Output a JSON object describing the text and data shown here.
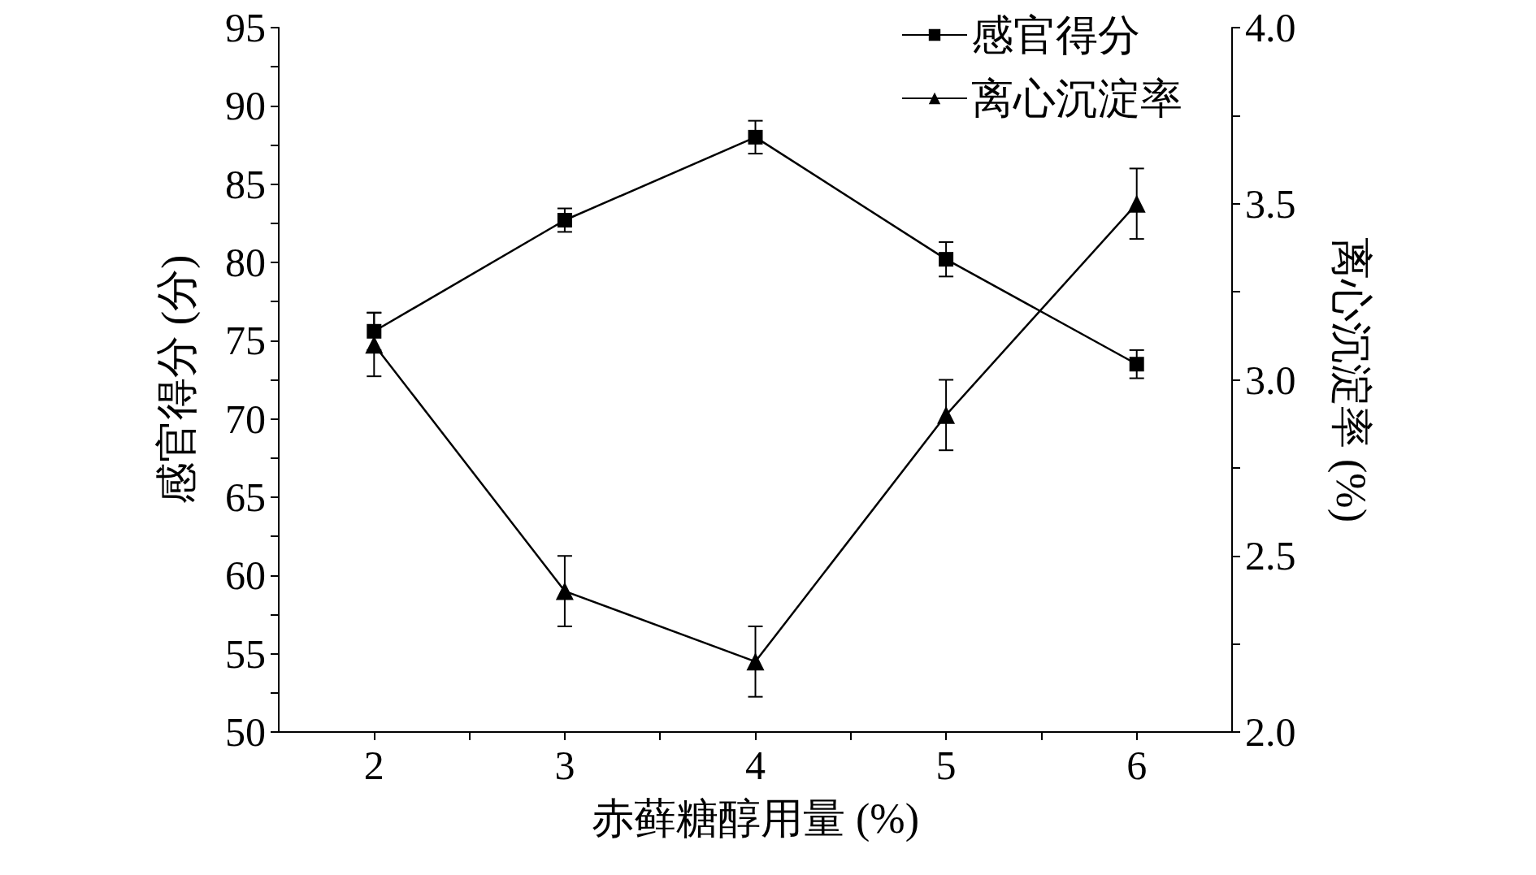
{
  "chart_data": {
    "type": "line",
    "xlabel": "赤藓糖醇用量 (%)",
    "ylabel": "感官得分 (分)",
    "y2label": "离心沉淀率 (%)",
    "x": [
      2,
      3,
      4,
      5,
      6
    ],
    "series": [
      {
        "name": "感官得分",
        "color": "#000000",
        "marker": "square",
        "values": [
          75.6,
          82.7,
          88.0,
          80.2,
          73.5
        ],
        "errors": [
          1.2,
          0.75,
          1.05,
          1.1,
          0.9
        ]
      },
      {
        "name": "离心沉淀率",
        "color": "#000000",
        "marker": "triangle",
        "axis": "y2",
        "values": [
          3.1,
          2.4,
          2.2,
          2.9,
          3.5
        ],
        "errors": [
          0.09,
          0.1,
          0.1,
          0.1,
          0.1
        ]
      }
    ],
    "xlim": [
      1.5,
      6.5
    ],
    "xticks": [
      2,
      {
        "value": 2.5,
        "label": null
      },
      3,
      {
        "value": 3.5,
        "label": null
      },
      4,
      {
        "value": 4.5,
        "label": null
      },
      5,
      {
        "value": 5.5,
        "label": null
      },
      6
    ],
    "ylim": [
      50,
      95
    ],
    "yticks": [
      50,
      {
        "value": 52.5,
        "label": null
      },
      55,
      {
        "value": 57.5,
        "label": null
      },
      60,
      {
        "value": 62.5,
        "label": null
      },
      65,
      {
        "value": 67.5,
        "label": null
      },
      70,
      {
        "value": 72.5,
        "label": null
      },
      75,
      {
        "value": 77.5,
        "label": null
      },
      80,
      {
        "value": 82.5,
        "label": null
      },
      85,
      {
        "value": 87.5,
        "label": null
      },
      90,
      {
        "value": 92.5,
        "label": null
      },
      95
    ],
    "y2lim": [
      2.0,
      4.0
    ],
    "y2ticks": [
      {
        "value": 2,
        "label": "2.0"
      },
      {
        "value": 2.25,
        "label": null
      },
      {
        "value": 2.5,
        "label": "2.5"
      },
      {
        "value": 2.75,
        "label": null
      },
      {
        "value": 3,
        "label": "3.0"
      },
      {
        "value": 3.25,
        "label": null
      },
      {
        "value": 3.5,
        "label": "3.5"
      },
      {
        "value": 3.75,
        "label": null
      },
      {
        "value": 4,
        "label": "4.0"
      }
    ],
    "grid": false,
    "legend": "top right",
    "line_style": "solid"
  }
}
